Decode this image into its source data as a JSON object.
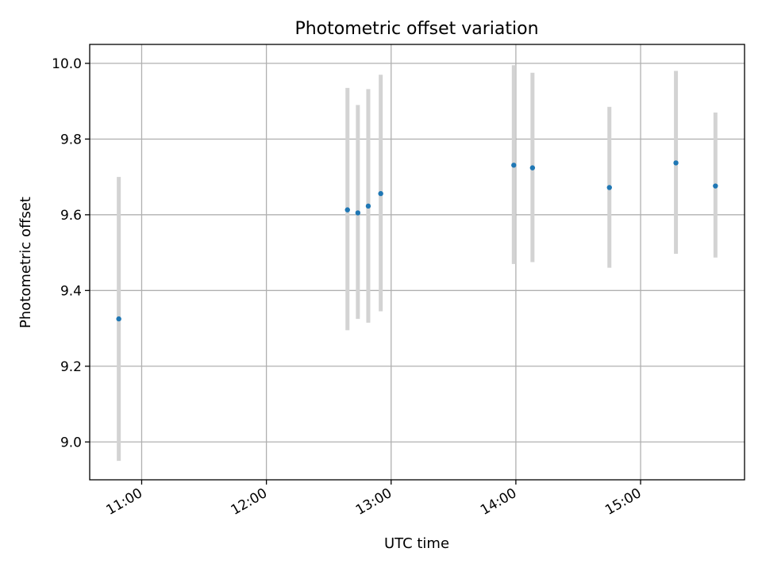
{
  "chart_data": {
    "type": "scatter",
    "title": "Photometric offset variation",
    "xlabel": "UTC time",
    "ylabel": "Photometric offset",
    "x_tick_labels": [
      "11:00",
      "12:00",
      "13:00",
      "14:00",
      "15:00"
    ],
    "y_tick_labels": [
      "9.0",
      "9.2",
      "9.4",
      "9.6",
      "9.8",
      "10.0"
    ],
    "xlim": [
      "10:35",
      "15:50"
    ],
    "ylim": [
      8.9,
      10.05
    ],
    "grid": true,
    "points": [
      {
        "x": "10:49",
        "y": 9.325,
        "err_low": 8.95,
        "err_high": 9.7
      },
      {
        "x": "12:39",
        "y": 9.613,
        "err_low": 9.295,
        "err_high": 9.935
      },
      {
        "x": "12:44",
        "y": 9.605,
        "err_low": 9.325,
        "err_high": 9.89
      },
      {
        "x": "12:49",
        "y": 9.623,
        "err_low": 9.315,
        "err_high": 9.932
      },
      {
        "x": "12:55",
        "y": 9.656,
        "err_low": 9.345,
        "err_high": 9.97
      },
      {
        "x": "13:59",
        "y": 9.731,
        "err_low": 9.47,
        "err_high": 9.995
      },
      {
        "x": "14:08",
        "y": 9.724,
        "err_low": 9.475,
        "err_high": 9.975
      },
      {
        "x": "14:45",
        "y": 9.672,
        "err_low": 9.46,
        "err_high": 9.885
      },
      {
        "x": "15:17",
        "y": 9.737,
        "err_low": 9.497,
        "err_high": 9.98
      },
      {
        "x": "15:36",
        "y": 9.676,
        "err_low": 9.487,
        "err_high": 9.87
      }
    ],
    "point_color": "#1f77b4",
    "errorbar_color": "#d3d3d3"
  }
}
